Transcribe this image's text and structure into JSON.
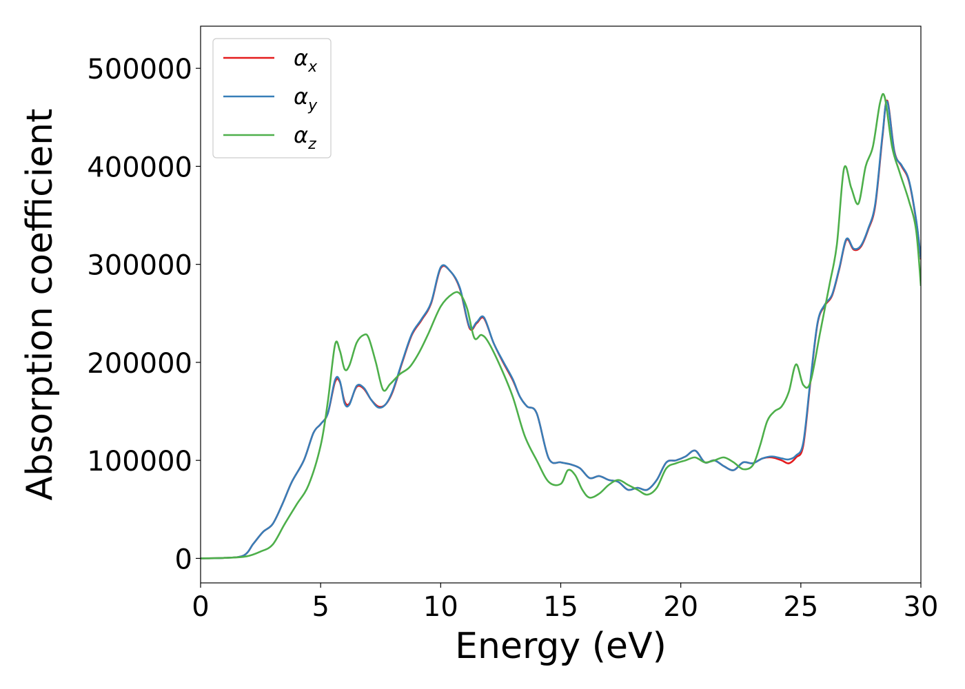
{
  "chart_data": {
    "type": "line",
    "title": "",
    "xlabel": "Energy (eV)",
    "ylabel": "Absorption coefficient",
    "xlim": [
      0,
      30
    ],
    "ylim": [
      -25000,
      543000
    ],
    "xticks": [
      0,
      5,
      10,
      15,
      20,
      25,
      30
    ],
    "yticks": [
      0,
      100000,
      200000,
      300000,
      400000,
      500000
    ],
    "grid": false,
    "legend_position": "upper-left",
    "series": [
      {
        "name": "αx",
        "legend_base": "α",
        "legend_sub": "x",
        "color": "#e41a1c",
        "x": [
          0,
          1,
          1.8,
          2.2,
          2.6,
          3.0,
          3.4,
          3.8,
          4.3,
          4.7,
          5.0,
          5.3,
          5.6,
          5.8,
          6.0,
          6.2,
          6.5,
          6.8,
          7.1,
          7.4,
          7.7,
          8.0,
          8.4,
          8.8,
          9.2,
          9.6,
          10.0,
          10.4,
          10.8,
          11.2,
          11.5,
          11.8,
          12.2,
          12.6,
          13.0,
          13.3,
          13.6,
          14.0,
          14.5,
          15.0,
          15.4,
          15.8,
          16.2,
          16.6,
          17.0,
          17.4,
          17.8,
          18.2,
          18.6,
          19.0,
          19.4,
          19.8,
          20.2,
          20.6,
          21.0,
          21.4,
          21.8,
          22.2,
          22.6,
          23.0,
          23.4,
          23.8,
          24.2,
          24.5,
          24.8,
          25.1,
          25.4,
          25.7,
          26.0,
          26.3,
          26.6,
          26.9,
          27.2,
          27.5,
          27.8,
          28.1,
          28.4,
          28.6,
          28.9,
          29.2,
          29.5,
          29.8,
          30.0
        ],
        "y": [
          0,
          500,
          3000,
          15000,
          27000,
          35000,
          55000,
          78000,
          100000,
          128000,
          137000,
          148000,
          180000,
          180000,
          160000,
          158000,
          175000,
          173000,
          162000,
          155000,
          157000,
          170000,
          200000,
          228000,
          243000,
          260000,
          296000,
          293000,
          275000,
          235000,
          240000,
          245000,
          220000,
          200000,
          182000,
          165000,
          155000,
          148000,
          102000,
          98000,
          96000,
          92000,
          82000,
          84000,
          80000,
          78000,
          70000,
          72000,
          70000,
          80000,
          98000,
          100000,
          104000,
          110000,
          98000,
          100000,
          94000,
          90000,
          98000,
          97000,
          102000,
          103000,
          100000,
          97000,
          103000,
          115000,
          180000,
          240000,
          258000,
          268000,
          295000,
          325000,
          315000,
          318000,
          335000,
          360000,
          430000,
          467000,
          415000,
          400000,
          385000,
          345000,
          305000
        ]
      },
      {
        "name": "αy",
        "legend_base": "α",
        "legend_sub": "y",
        "color": "#377eb8",
        "x": [
          0,
          1,
          1.8,
          2.2,
          2.6,
          3.0,
          3.4,
          3.8,
          4.3,
          4.7,
          5.0,
          5.3,
          5.6,
          5.8,
          6.0,
          6.2,
          6.5,
          6.8,
          7.1,
          7.4,
          7.7,
          8.0,
          8.4,
          8.8,
          9.2,
          9.6,
          10.0,
          10.4,
          10.8,
          11.2,
          11.5,
          11.8,
          12.2,
          12.6,
          13.0,
          13.3,
          13.6,
          14.0,
          14.5,
          15.0,
          15.4,
          15.8,
          16.2,
          16.6,
          17.0,
          17.4,
          17.8,
          18.2,
          18.6,
          19.0,
          19.4,
          19.8,
          20.2,
          20.6,
          21.0,
          21.4,
          21.8,
          22.2,
          22.6,
          23.0,
          23.4,
          23.8,
          24.2,
          24.5,
          24.8,
          25.1,
          25.4,
          25.7,
          26.0,
          26.3,
          26.6,
          26.9,
          27.2,
          27.5,
          27.8,
          28.1,
          28.4,
          28.6,
          28.9,
          29.2,
          29.5,
          29.8,
          30.0
        ],
        "y": [
          0,
          500,
          3000,
          15000,
          27000,
          35000,
          55000,
          78000,
          100000,
          128000,
          137000,
          148000,
          182000,
          181000,
          158000,
          157000,
          176000,
          174000,
          162000,
          154000,
          157000,
          171000,
          201000,
          229000,
          244000,
          261000,
          297000,
          293000,
          276000,
          236000,
          241000,
          246000,
          220000,
          201000,
          183000,
          165000,
          155000,
          148000,
          102000,
          98000,
          96000,
          92000,
          82000,
          84000,
          80000,
          78000,
          70000,
          72000,
          70000,
          80000,
          98000,
          100000,
          104000,
          110000,
          98000,
          100000,
          94000,
          90000,
          98000,
          97000,
          102000,
          104000,
          102000,
          101000,
          105000,
          118000,
          182000,
          241000,
          259000,
          269000,
          296000,
          326000,
          316000,
          319000,
          336000,
          362000,
          432000,
          466000,
          414000,
          401000,
          386000,
          346000,
          306000
        ]
      },
      {
        "name": "αz",
        "legend_base": "α",
        "legend_sub": "z",
        "color": "#4daf4a",
        "x": [
          0,
          1,
          1.9,
          2.5,
          3.0,
          3.5,
          4.0,
          4.5,
          5.0,
          5.3,
          5.6,
          5.8,
          6.0,
          6.2,
          6.5,
          6.8,
          7.0,
          7.3,
          7.6,
          7.9,
          8.3,
          8.7,
          9.1,
          9.5,
          10.0,
          10.5,
          10.8,
          11.1,
          11.4,
          11.7,
          12.0,
          12.5,
          13.0,
          13.5,
          14.0,
          14.5,
          15.0,
          15.3,
          15.6,
          15.9,
          16.2,
          16.6,
          17.0,
          17.4,
          17.8,
          18.2,
          18.6,
          19.0,
          19.4,
          19.8,
          20.2,
          20.6,
          21.0,
          21.4,
          21.8,
          22.2,
          22.6,
          23.0,
          23.3,
          23.6,
          23.9,
          24.2,
          24.5,
          24.8,
          25.1,
          25.4,
          25.8,
          26.2,
          26.5,
          26.8,
          27.1,
          27.4,
          27.7,
          28.0,
          28.3,
          28.5,
          28.8,
          29.1,
          29.5,
          29.8,
          30.0
        ],
        "y": [
          0,
          500,
          2000,
          7000,
          14000,
          35000,
          55000,
          75000,
          115000,
          160000,
          218000,
          212000,
          193000,
          197000,
          220000,
          228000,
          225000,
          200000,
          172000,
          178000,
          188000,
          195000,
          210000,
          230000,
          257000,
          270000,
          270000,
          255000,
          225000,
          228000,
          220000,
          195000,
          165000,
          125000,
          100000,
          78000,
          76000,
          90000,
          85000,
          70000,
          62000,
          66000,
          75000,
          80000,
          75000,
          70000,
          65000,
          72000,
          92000,
          97000,
          100000,
          103000,
          98000,
          100000,
          103000,
          98000,
          91000,
          95000,
          115000,
          140000,
          150000,
          155000,
          170000,
          198000,
          177000,
          180000,
          230000,
          280000,
          320000,
          398000,
          378000,
          362000,
          400000,
          420000,
          465000,
          470000,
          420000,
          395000,
          365000,
          335000,
          278000
        ]
      }
    ]
  }
}
